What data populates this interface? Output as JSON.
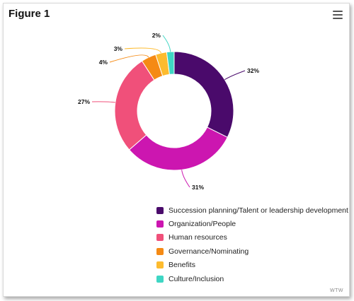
{
  "header": {
    "title": "Figure 1"
  },
  "menu": {
    "icon": "hamburger-menu-icon"
  },
  "credit": "WTW",
  "chart_data": {
    "type": "pie",
    "donut": true,
    "title": "",
    "categories": [
      "Succession planning/Talent or leadership development",
      "Organization/People",
      "Human resources",
      "Governance/Nominating",
      "Benefits",
      "Culture/Inclusion"
    ],
    "values": [
      32,
      31,
      27,
      4,
      3,
      2
    ],
    "labels": [
      "32%",
      "31%",
      "27%",
      "4%",
      "3%",
      "2%"
    ],
    "colors": [
      "#4a0a6b",
      "#cc16b0",
      "#f0507a",
      "#f58a14",
      "#fdbb2e",
      "#3fd6c4"
    ],
    "legend_position": "bottom-right"
  }
}
